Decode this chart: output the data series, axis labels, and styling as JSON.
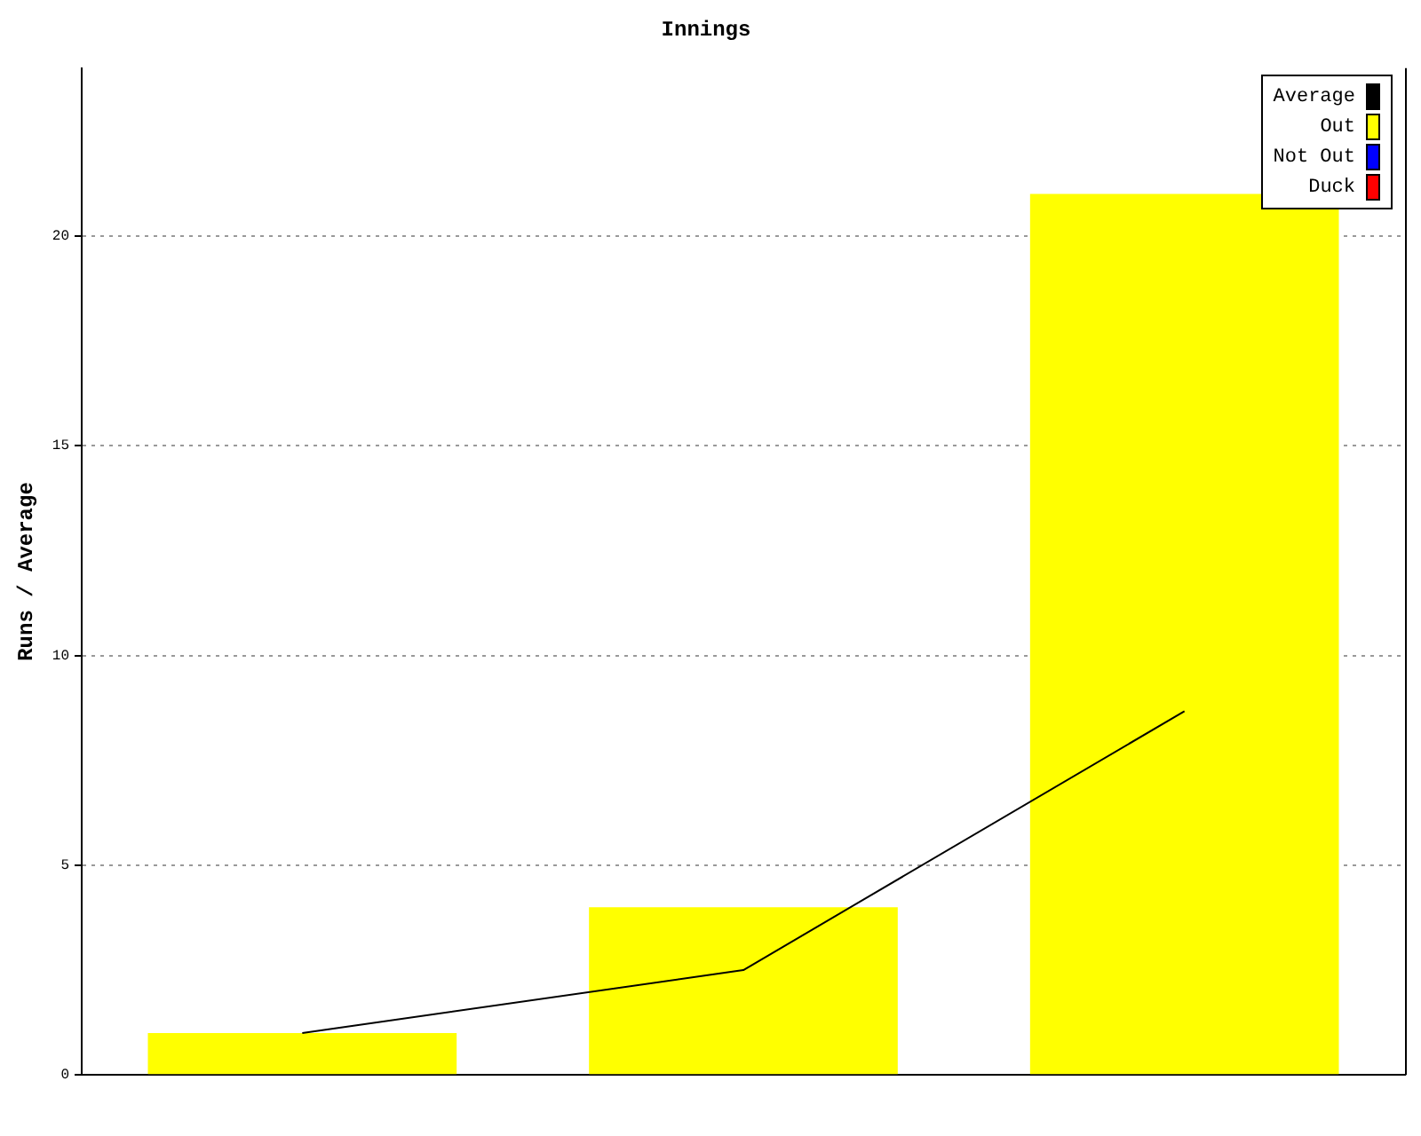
{
  "chart_data": {
    "type": "bar",
    "title": "Innings",
    "ylabel": "Runs / Average",
    "categories": [
      null,
      null,
      null
    ],
    "series": [
      {
        "name": "Average",
        "type": "line",
        "color": "#000000",
        "values": [
          1,
          2.5,
          8.67
        ]
      },
      {
        "name": "Out",
        "color": "#ffff00",
        "values": [
          1,
          4,
          21
        ]
      },
      {
        "name": "Not Out",
        "color": "#0000ff",
        "values": [
          null,
          null,
          null
        ]
      },
      {
        "name": "Duck",
        "color": "#ff0000",
        "values": [
          null,
          null,
          null
        ]
      }
    ],
    "ylim": [
      0,
      24
    ],
    "yticks": [
      0,
      5,
      10,
      15,
      20
    ],
    "grid": "y",
    "legend": "top right",
    "marker": "none"
  }
}
